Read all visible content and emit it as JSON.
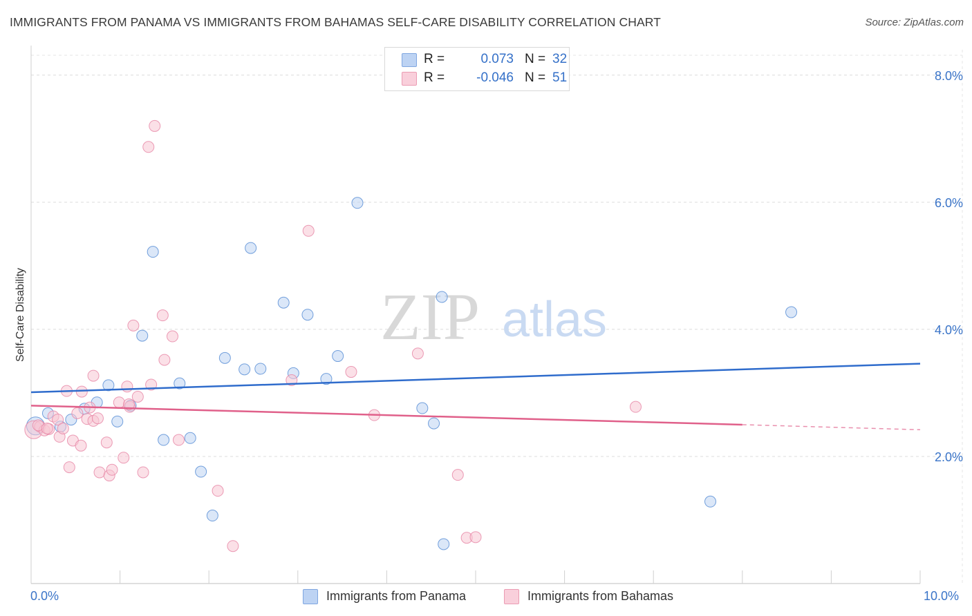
{
  "title": "IMMIGRANTS FROM PANAMA VS IMMIGRANTS FROM BAHAMAS SELF-CARE DISABILITY CORRELATION CHART",
  "source": "Source: ZipAtlas.com",
  "watermark": {
    "zip": "ZIP",
    "atlas": "atlas"
  },
  "legend": {
    "rows": [
      {
        "r_label": "R =",
        "r_value": "0.073",
        "n_label": "N =",
        "n_value": "32",
        "color": "#a9c6f0"
      },
      {
        "r_label": "R =",
        "r_value": "-0.046",
        "n_label": "N =",
        "n_value": "51",
        "color": "#f5b7c8"
      }
    ]
  },
  "bottom_legend": [
    {
      "label": "Immigrants from Panama",
      "color": "#a9c6f0"
    },
    {
      "label": "Immigrants from Bahamas",
      "color": "#f5b7c8"
    }
  ],
  "chart_data": {
    "type": "scatter",
    "title": "IMMIGRANTS FROM PANAMA VS IMMIGRANTS FROM BAHAMAS SELF-CARE DISABILITY CORRELATION CHART",
    "xlabel": "",
    "ylabel": "Self-Care Disability",
    "xlim": [
      0,
      10
    ],
    "ylim": [
      0,
      8.4
    ],
    "x_tick_labels": [
      "0.0%",
      "10.0%"
    ],
    "y_ticks": [
      2,
      4,
      6,
      8
    ],
    "y_tick_labels": [
      "2.0%",
      "4.0%",
      "6.0%",
      "8.0%"
    ],
    "grid": true,
    "series": [
      {
        "name": "Immigrants from Panama",
        "color": "#5b8fd6",
        "fill": "#bdd3f3",
        "trend": {
          "x0": 0,
          "y0": 3.01,
          "x1": 10,
          "y1": 3.46,
          "color": "#2f6ccc"
        },
        "points": [
          {
            "x": 0.05,
            "y": 2.48,
            "big": true
          },
          {
            "x": 0.19,
            "y": 2.68
          },
          {
            "x": 0.33,
            "y": 2.47
          },
          {
            "x": 0.45,
            "y": 2.58
          },
          {
            "x": 0.6,
            "y": 2.75
          },
          {
            "x": 0.74,
            "y": 2.85
          },
          {
            "x": 0.87,
            "y": 3.12
          },
          {
            "x": 0.97,
            "y": 2.55
          },
          {
            "x": 1.12,
            "y": 2.8
          },
          {
            "x": 1.25,
            "y": 3.9
          },
          {
            "x": 1.37,
            "y": 5.22
          },
          {
            "x": 1.49,
            "y": 2.26
          },
          {
            "x": 1.67,
            "y": 3.15
          },
          {
            "x": 1.79,
            "y": 2.29
          },
          {
            "x": 1.91,
            "y": 1.76
          },
          {
            "x": 2.04,
            "y": 1.07
          },
          {
            "x": 2.18,
            "y": 3.55
          },
          {
            "x": 2.4,
            "y": 3.37
          },
          {
            "x": 2.47,
            "y": 5.28
          },
          {
            "x": 2.58,
            "y": 3.38
          },
          {
            "x": 2.84,
            "y": 4.42
          },
          {
            "x": 2.95,
            "y": 3.31
          },
          {
            "x": 3.11,
            "y": 4.23
          },
          {
            "x": 3.32,
            "y": 3.22
          },
          {
            "x": 3.45,
            "y": 3.58
          },
          {
            "x": 3.67,
            "y": 5.99
          },
          {
            "x": 4.4,
            "y": 2.76
          },
          {
            "x": 4.53,
            "y": 2.52
          },
          {
            "x": 4.62,
            "y": 4.51
          },
          {
            "x": 4.64,
            "y": 0.62
          },
          {
            "x": 7.64,
            "y": 1.29
          },
          {
            "x": 8.55,
            "y": 4.27
          }
        ]
      },
      {
        "name": "Immigrants from Bahamas",
        "color": "#e78aa8",
        "fill": "#f7c6d4",
        "trend": {
          "x0": 0,
          "y0": 2.8,
          "x1": 8.0,
          "y1": 2.5,
          "dash_to_x": 10,
          "dash_to_y": 2.42,
          "color": "#e0608a"
        },
        "points": [
          {
            "x": 0.03,
            "y": 2.42,
            "big": true
          },
          {
            "x": 0.1,
            "y": 2.47
          },
          {
            "x": 0.15,
            "y": 2.41
          },
          {
            "x": 0.2,
            "y": 2.43
          },
          {
            "x": 0.25,
            "y": 2.63
          },
          {
            "x": 0.3,
            "y": 2.58
          },
          {
            "x": 0.32,
            "y": 2.31
          },
          {
            "x": 0.36,
            "y": 2.44
          },
          {
            "x": 0.4,
            "y": 3.03
          },
          {
            "x": 0.43,
            "y": 1.83
          },
          {
            "x": 0.47,
            "y": 2.25
          },
          {
            "x": 0.52,
            "y": 2.68
          },
          {
            "x": 0.56,
            "y": 2.17
          },
          {
            "x": 0.57,
            "y": 3.02
          },
          {
            "x": 0.63,
            "y": 2.59
          },
          {
            "x": 0.66,
            "y": 2.77
          },
          {
            "x": 0.7,
            "y": 2.56
          },
          {
            "x": 0.7,
            "y": 3.27
          },
          {
            "x": 0.75,
            "y": 2.6
          },
          {
            "x": 0.77,
            "y": 1.75
          },
          {
            "x": 0.85,
            "y": 2.22
          },
          {
            "x": 0.88,
            "y": 1.7
          },
          {
            "x": 0.91,
            "y": 1.79
          },
          {
            "x": 0.99,
            "y": 2.85
          },
          {
            "x": 1.04,
            "y": 1.98
          },
          {
            "x": 1.08,
            "y": 3.1
          },
          {
            "x": 1.11,
            "y": 2.78
          },
          {
            "x": 1.15,
            "y": 4.06
          },
          {
            "x": 1.2,
            "y": 2.94
          },
          {
            "x": 1.26,
            "y": 1.75
          },
          {
            "x": 1.32,
            "y": 6.87
          },
          {
            "x": 1.35,
            "y": 3.13
          },
          {
            "x": 1.39,
            "y": 7.2
          },
          {
            "x": 1.48,
            "y": 4.22
          },
          {
            "x": 1.5,
            "y": 3.52
          },
          {
            "x": 1.59,
            "y": 3.89
          },
          {
            "x": 1.66,
            "y": 2.26
          },
          {
            "x": 2.1,
            "y": 1.46
          },
          {
            "x": 2.27,
            "y": 0.59
          },
          {
            "x": 3.12,
            "y": 5.55
          },
          {
            "x": 2.93,
            "y": 3.2
          },
          {
            "x": 3.6,
            "y": 3.33
          },
          {
            "x": 3.86,
            "y": 2.65
          },
          {
            "x": 4.35,
            "y": 3.62
          },
          {
            "x": 4.8,
            "y": 1.71
          },
          {
            "x": 4.9,
            "y": 0.72
          },
          {
            "x": 5.0,
            "y": 0.73
          },
          {
            "x": 6.8,
            "y": 2.78
          },
          {
            "x": 0.08,
            "y": 2.49
          },
          {
            "x": 0.18,
            "y": 2.44
          },
          {
            "x": 1.1,
            "y": 2.82
          }
        ]
      }
    ]
  }
}
